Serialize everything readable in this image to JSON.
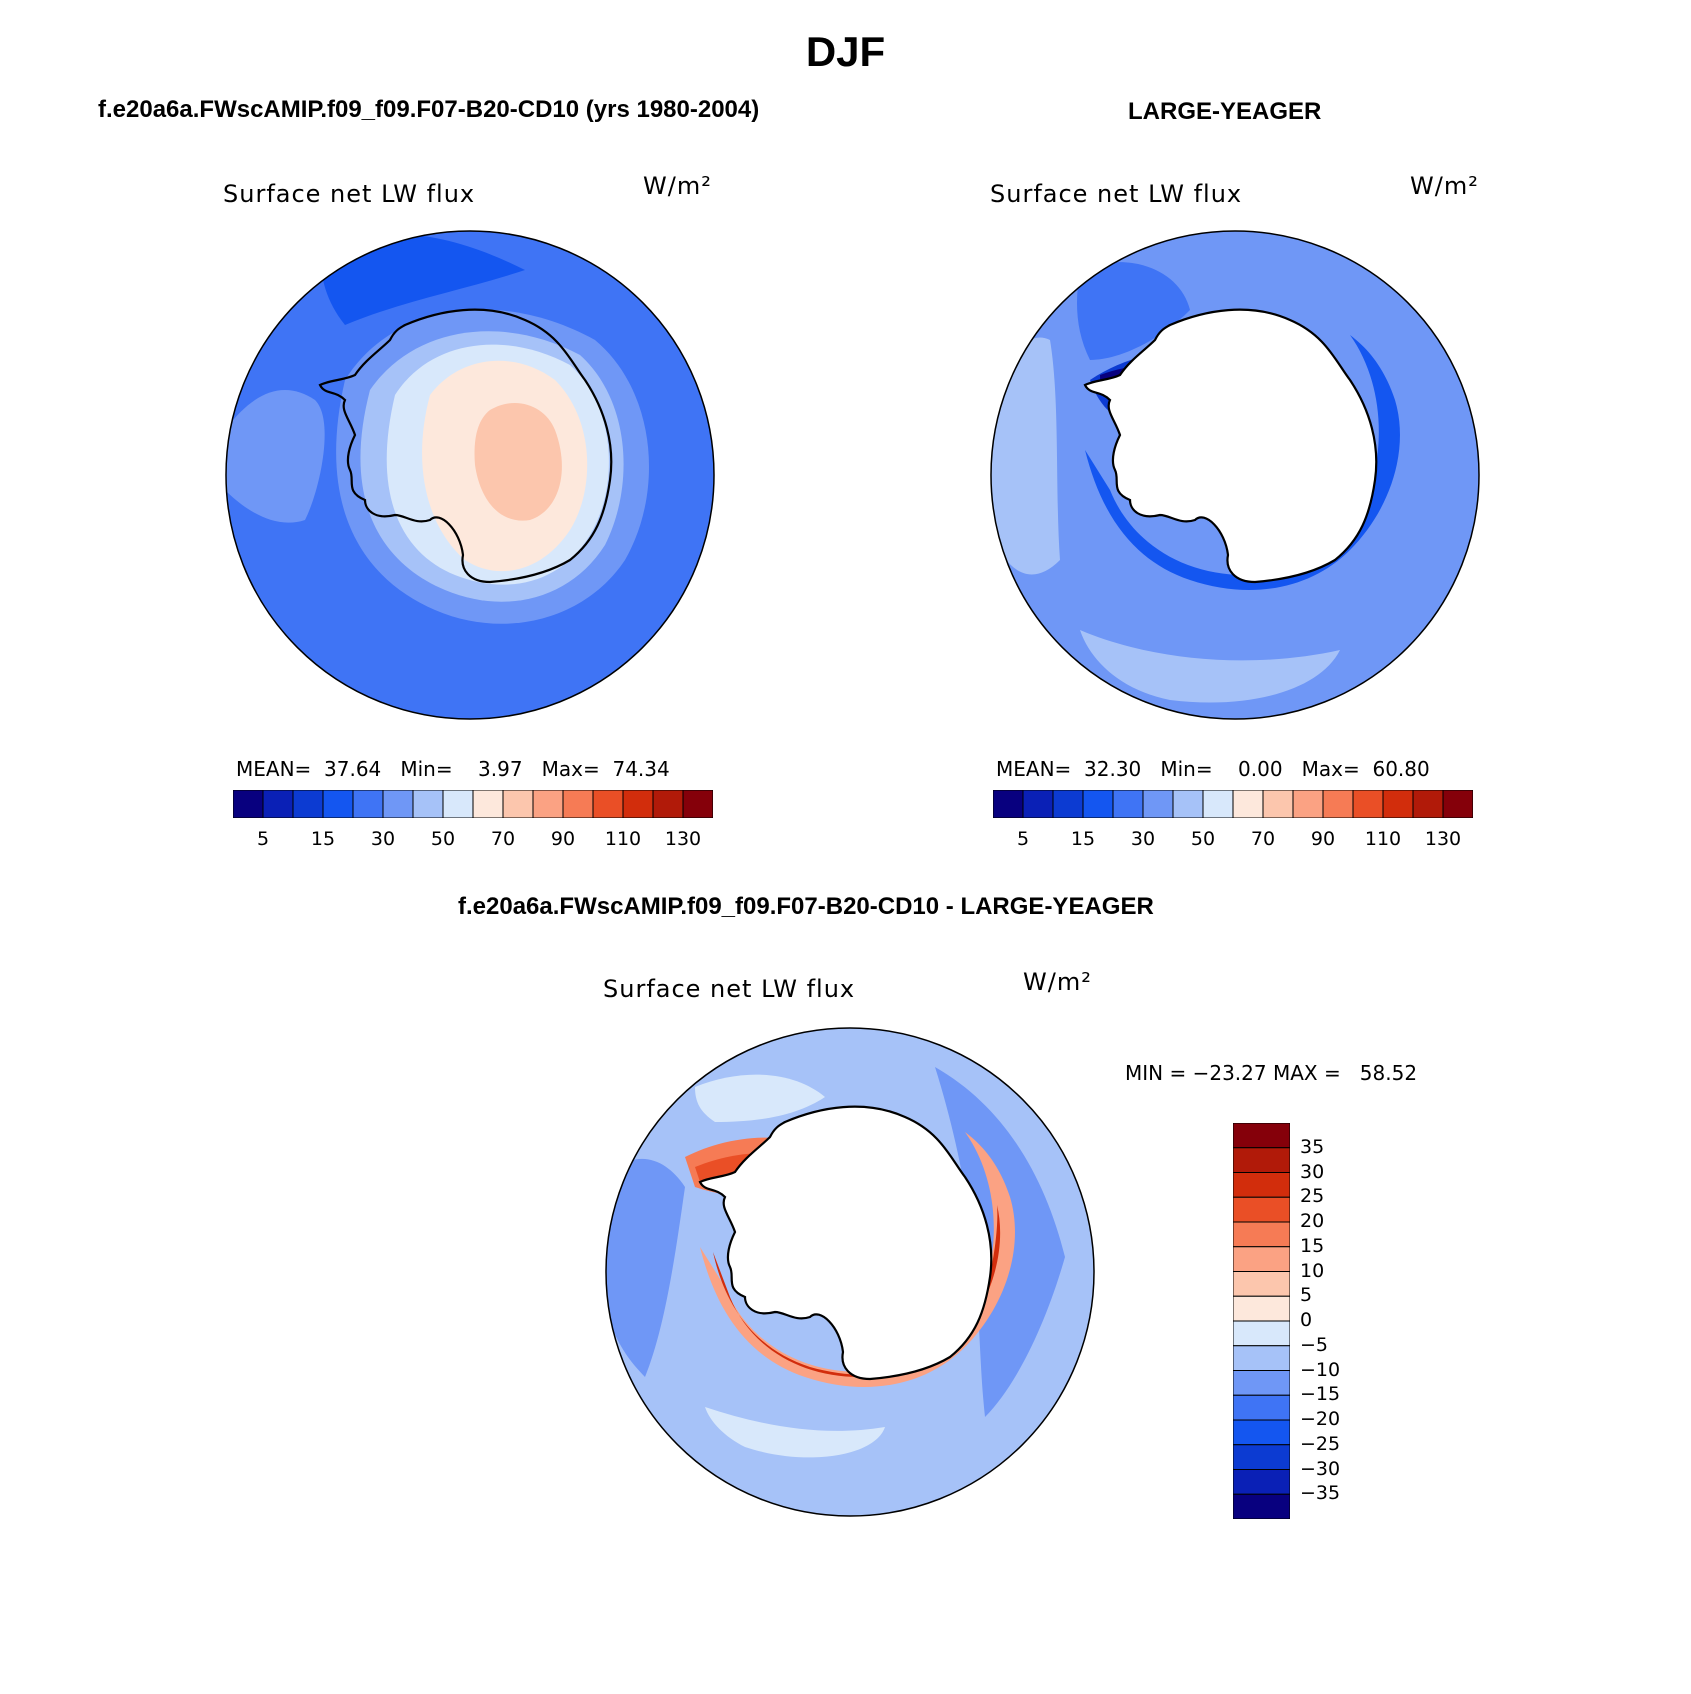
{
  "figure": {
    "title": "DJF"
  },
  "panels": [
    {
      "case_title": "f.e20a6a.FWscAMIP.f09_f09.F07-B20-CD10 (yrs 1980-2004)",
      "variable": "Surface net LW flux",
      "units": "W/m²",
      "stats": {
        "mean_label": "MEAN=",
        "mean": "37.64",
        "min_label": "Min=",
        "min": "3.97",
        "max_label": "Max=",
        "max": "74.34"
      },
      "colorbar_ticks": [
        "5",
        "15",
        "30",
        "50",
        "70",
        "90",
        "110",
        "130"
      ]
    },
    {
      "case_title": "LARGE-YEAGER",
      "variable": "Surface net LW flux",
      "units": "W/m²",
      "stats": {
        "mean_label": "MEAN=",
        "mean": "32.30",
        "min_label": "Min=",
        "min": "0.00",
        "max_label": "Max=",
        "max": "60.80"
      },
      "colorbar_ticks": [
        "5",
        "15",
        "30",
        "50",
        "70",
        "90",
        "110",
        "130"
      ]
    },
    {
      "case_title": "f.e20a6a.FWscAMIP.f09_f09.F07-B20-CD10 - LARGE-YEAGER",
      "variable": "Surface net LW flux",
      "units": "W/m²",
      "stats_text": "MIN = −23.27 MAX =   58.52",
      "colorbar_ticks": [
        "35",
        "30",
        "25",
        "20",
        "15",
        "10",
        "5",
        "0",
        "−5",
        "−10",
        "−15",
        "−20",
        "−25",
        "−30",
        "−35"
      ]
    }
  ],
  "colors": {
    "abs_scale": [
      "#08007f",
      "#0a20b6",
      "#0c3bd2",
      "#1456f0",
      "#3f74f5",
      "#6f97f6",
      "#a6c2f8",
      "#d8e8fb",
      "#fde8dc",
      "#fcc6ad",
      "#fba283",
      "#f67b55",
      "#ea4f26",
      "#d22d0c",
      "#b11a09",
      "#85000a"
    ],
    "diff_scale": [
      "#85000a",
      "#b11a09",
      "#d22d0c",
      "#ea4f26",
      "#f67b55",
      "#fba283",
      "#fcc6ad",
      "#fde8dc",
      "#d8e8fb",
      "#a6c2f8",
      "#6f97f6",
      "#3f74f5",
      "#1456f0",
      "#0c3bd2",
      "#0a20b6",
      "#08007f"
    ],
    "land_fill": "#ffffff",
    "coastline": "#000000"
  }
}
